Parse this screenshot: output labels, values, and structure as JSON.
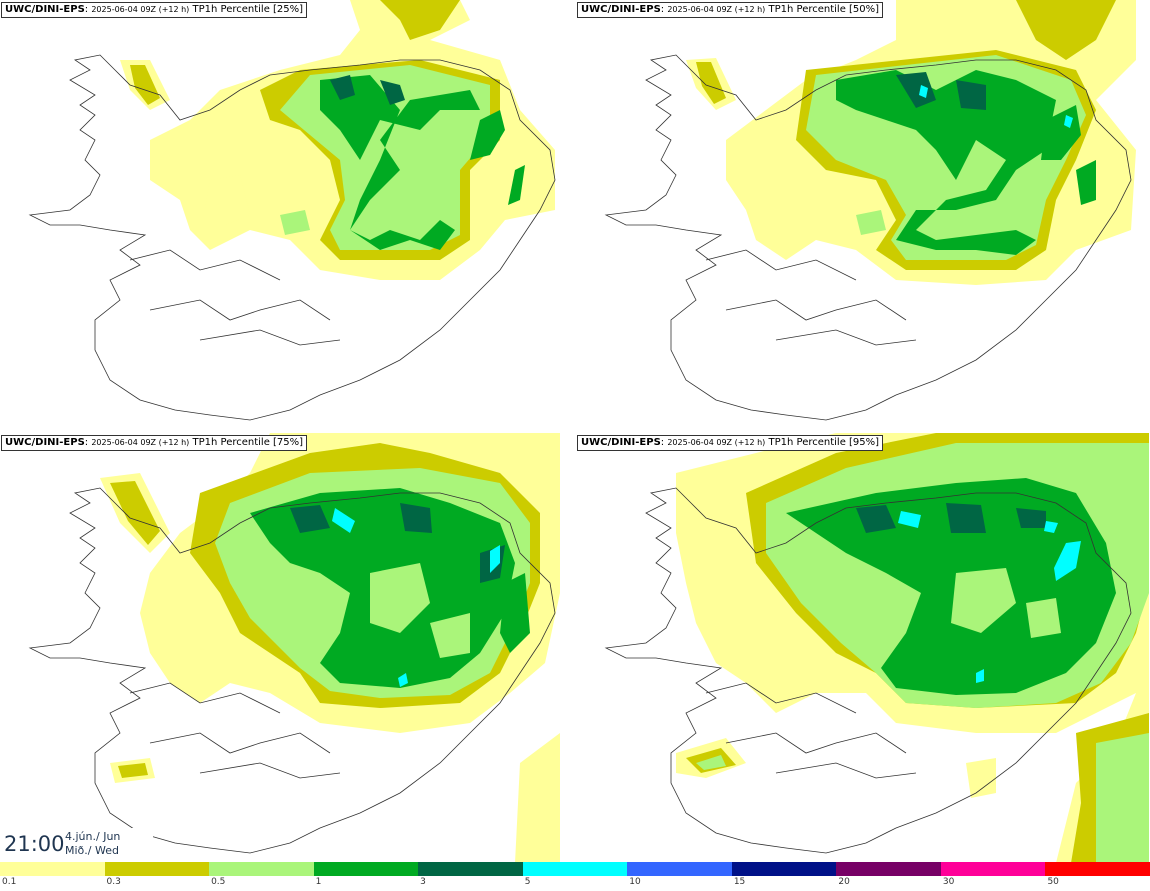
{
  "panels": [
    {
      "source": "UWC/DINI-EPS",
      "run": "2025-06-04 09Z (+12 h)",
      "label": "TP1h Percentile [25%]"
    },
    {
      "source": "UWC/DINI-EPS",
      "run": "2025-06-04 09Z (+12 h)",
      "label": "TP1h Percentile [50%]"
    },
    {
      "source": "UWC/DINI-EPS",
      "run": "2025-06-04 09Z (+12 h)",
      "label": "TP1h Percentile [75%]"
    },
    {
      "source": "UWC/DINI-EPS",
      "run": "2025-06-04 09Z (+12 h)",
      "label": "TP1h Percentile [95%]"
    }
  ],
  "valid_time": {
    "time": "21:00",
    "date_line1": "4.jún./ Jun",
    "date_line2": "Mið./ Wed"
  },
  "legend": {
    "ticks": [
      "0.1",
      "0.3",
      "0.5",
      "1",
      "3",
      "5",
      "10",
      "15",
      "20",
      "30",
      "50"
    ],
    "colors": [
      "#ffff99",
      "#cccc00",
      "#aaf57a",
      "#00aa22",
      "#006644",
      "#00ffff",
      "#3366ff",
      "#001188",
      "#770066",
      "#ff0099",
      "#ff0000"
    ]
  },
  "colors": {
    "coast": "#333333",
    "background": "#ffffff"
  }
}
